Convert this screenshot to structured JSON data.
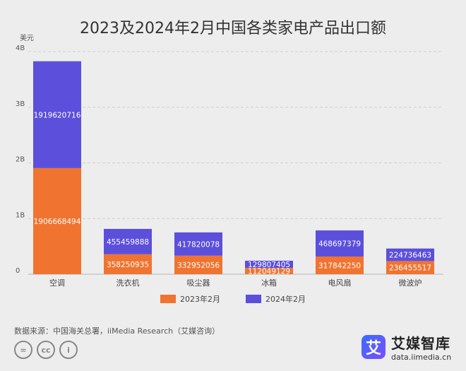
{
  "title": "2023及2024年2月中国各类家电产品出口额",
  "source": "数据来源：中国海关总署，iiMedia Research（艾媒咨询）",
  "brand": {
    "name": "艾媒智库",
    "url": "data.iimedia.cn",
    "logo_char": "艾"
  },
  "cc": {
    "equal": "=",
    "cc": "cc",
    "person": "i"
  },
  "colors": {
    "s2023": "#f07430",
    "s2024": "#5b4fdc",
    "grid": "#cfcfcf"
  },
  "chart_data": {
    "type": "bar",
    "stacked": true,
    "title": "2023及2024年2月中国各类家电产品出口额",
    "ylabel": "美元",
    "ylim": [
      0,
      4000000000
    ],
    "yticks": [
      {
        "v": 0,
        "label": "0"
      },
      {
        "v": 1000000000,
        "label": "1B"
      },
      {
        "v": 2000000000,
        "label": "2B"
      },
      {
        "v": 3000000000,
        "label": "3B"
      },
      {
        "v": 4000000000,
        "label": "4B"
      }
    ],
    "categories": [
      "空调",
      "洗衣机",
      "吸尘器",
      "冰箱",
      "电风扇",
      "微波炉"
    ],
    "series": [
      {
        "name": "2023年2月",
        "values": [
          1906668494,
          358250935,
          332952056,
          112049129,
          317842250,
          236455517
        ]
      },
      {
        "name": "2024年2月",
        "values": [
          1919620716,
          455459888,
          417820078,
          129807405,
          468697379,
          224736463
        ]
      }
    ],
    "legend": "bottom-center"
  }
}
